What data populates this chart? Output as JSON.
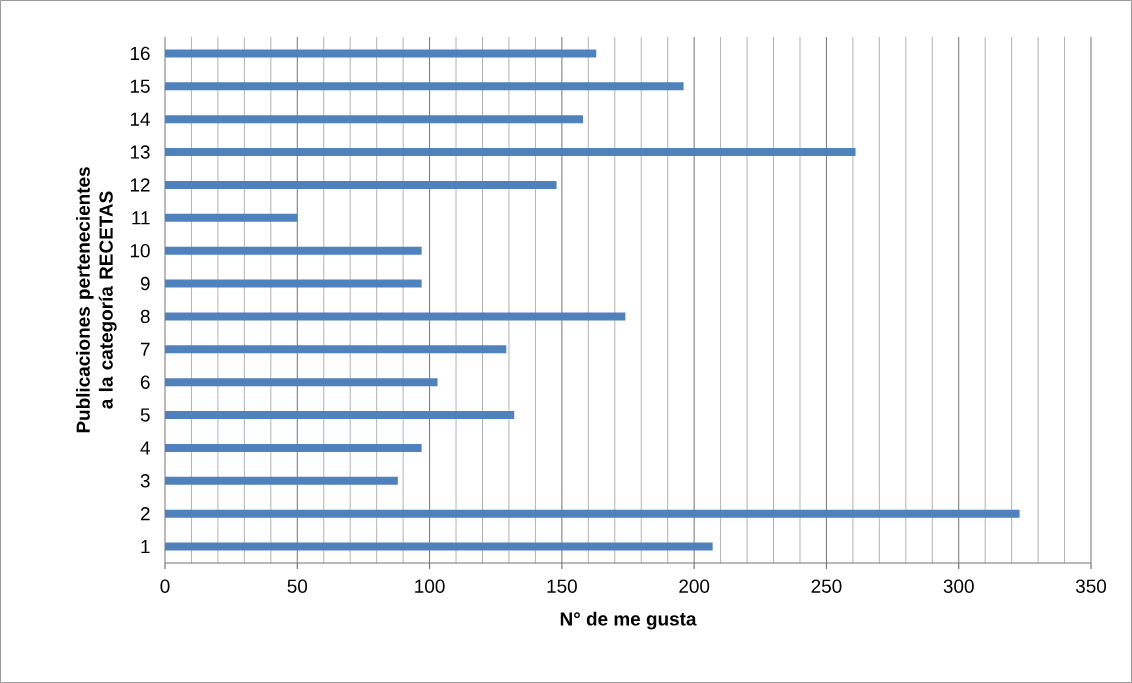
{
  "chart_data": {
    "type": "bar",
    "orientation": "horizontal",
    "xlabel": "N° de me gusta",
    "ylabel": "Publicaciones pertenecientes a la categoría RECETAS",
    "categories": [
      "16",
      "15",
      "14",
      "13",
      "12",
      "11",
      "10",
      "9",
      "8",
      "7",
      "6",
      "5",
      "4",
      "3",
      "2",
      "1"
    ],
    "values": [
      163,
      196,
      158,
      261,
      148,
      50,
      97,
      97,
      174,
      129,
      103,
      132,
      97,
      88,
      323,
      207
    ],
    "color": "#4f81bd",
    "xlim": [
      0,
      350
    ],
    "xticks": [
      0,
      {
        "value": 10,
        "label": null
      },
      {
        "value": 20,
        "label": null
      },
      {
        "value": 30,
        "label": null
      },
      {
        "value": 40,
        "label": null
      },
      50,
      {
        "value": 60,
        "label": null
      },
      {
        "value": 70,
        "label": null
      },
      {
        "value": 80,
        "label": null
      },
      {
        "value": 90,
        "label": null
      },
      100,
      {
        "value": 110,
        "label": null
      },
      {
        "value": 120,
        "label": null
      },
      {
        "value": 130,
        "label": null
      },
      {
        "value": 140,
        "label": null
      },
      150,
      {
        "value": 160,
        "label": null
      },
      {
        "value": 170,
        "label": null
      },
      {
        "value": 180,
        "label": null
      },
      {
        "value": 190,
        "label": null
      },
      200,
      {
        "value": 210,
        "label": null
      },
      {
        "value": 220,
        "label": null
      },
      {
        "value": 230,
        "label": null
      },
      {
        "value": 240,
        "label": null
      },
      250,
      {
        "value": 260,
        "label": null
      },
      {
        "value": 270,
        "label": null
      },
      {
        "value": 280,
        "label": null
      },
      {
        "value": 290,
        "label": null
      },
      300,
      {
        "value": 310,
        "label": null
      },
      {
        "value": 320,
        "label": null
      },
      {
        "value": 330,
        "label": null
      },
      {
        "value": 340,
        "label": null
      },
      350
    ],
    "grid": "x"
  }
}
